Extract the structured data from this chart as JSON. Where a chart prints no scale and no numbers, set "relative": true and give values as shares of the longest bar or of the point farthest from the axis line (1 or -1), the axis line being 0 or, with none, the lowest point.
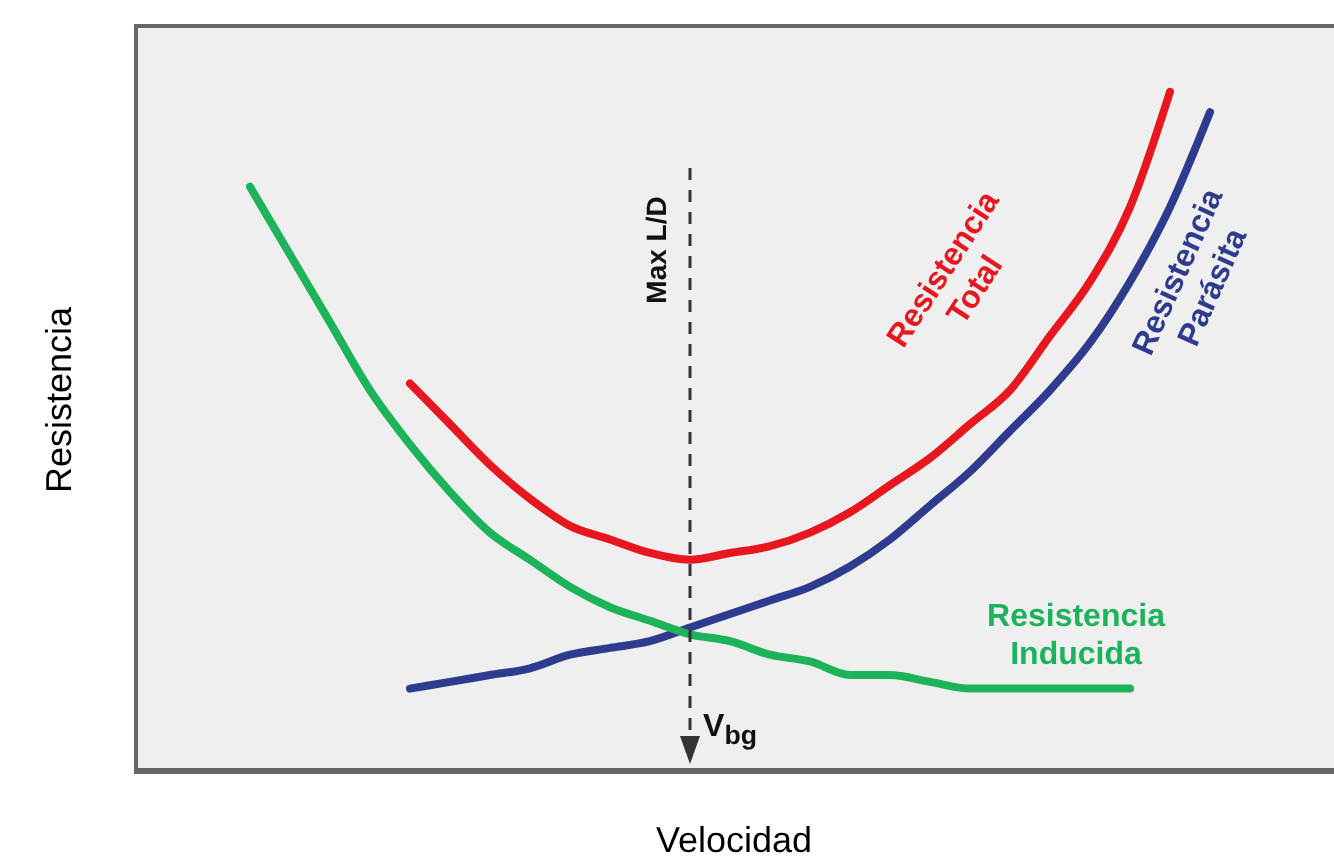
{
  "chart_data": {
    "type": "line",
    "relative": true,
    "xlabel": "Velocidad",
    "ylabel": "Resistencia",
    "categories": [
      null,
      null,
      null,
      null,
      null,
      null,
      null,
      null,
      null,
      null,
      null,
      null,
      null,
      null,
      null,
      null,
      null,
      null,
      null,
      null,
      null,
      null,
      null,
      null,
      null
    ],
    "series": [
      {
        "name": "Resistencia Total",
        "color": "#e8161e",
        "values": [
          null,
          null,
          null,
          null,
          0.57,
          0.51,
          0.45,
          0.4,
          0.36,
          0.34,
          0.32,
          0.31,
          0.32,
          0.33,
          0.35,
          0.38,
          0.42,
          0.46,
          0.51,
          0.56,
          0.64,
          0.72,
          0.83,
          1.0,
          null
        ]
      },
      {
        "name": "Resistencia Parásita",
        "color": "#2e3b8f",
        "values": [
          null,
          null,
          null,
          null,
          0.12,
          0.13,
          0.14,
          0.15,
          0.17,
          0.18,
          0.19,
          0.21,
          0.23,
          0.25,
          0.27,
          0.3,
          0.34,
          0.39,
          0.44,
          0.5,
          0.56,
          0.63,
          0.72,
          0.83,
          0.97
        ]
      },
      {
        "name": "Resistencia Inducida",
        "color": "#1db35a",
        "values": [
          0.86,
          0.76,
          0.66,
          0.56,
          0.48,
          0.41,
          0.35,
          0.31,
          0.27,
          0.24,
          0.22,
          0.2,
          0.19,
          0.17,
          0.16,
          0.14,
          0.14,
          0.13,
          0.12,
          0.12,
          0.12,
          0.12,
          0.12,
          null,
          null
        ]
      }
    ],
    "annotations": [
      "Max L/D",
      "V$_{bg}$"
    ]
  }
}
